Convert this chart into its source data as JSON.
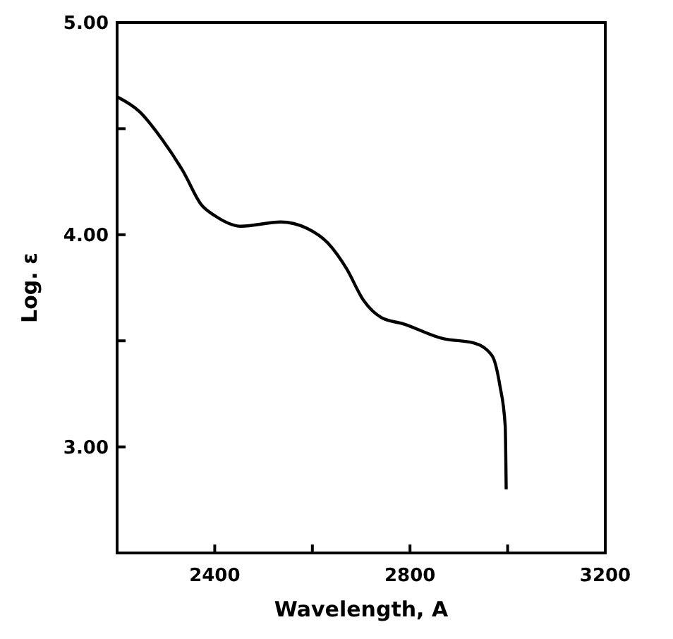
{
  "chart_data": {
    "type": "line",
    "xlabel": "Wavelength, A",
    "ylabel": "Log. ε",
    "xlim": [
      2200,
      3200
    ],
    "xticks": [
      2400,
      {
        "value": 2600,
        "label": null
      },
      2800,
      {
        "value": 3000,
        "label": null
      },
      3200
    ],
    "ylim": [
      2.5,
      5
    ],
    "yticks": [
      {
        "value": 3,
        "label": "3.00"
      },
      {
        "value": 3.5,
        "label": null
      },
      {
        "value": 4,
        "label": "4.00"
      },
      {
        "value": 4.5,
        "label": null
      },
      {
        "value": 5,
        "label": "5.00"
      }
    ],
    "grid": false,
    "marker": "none",
    "line_style": "solid",
    "x": [
      2200,
      2246,
      2292,
      2335,
      2373,
      2400,
      2454,
      2535,
      2589,
      2632,
      2670,
      2705,
      2741,
      2786,
      2868,
      2930,
      2968,
      2984,
      2995,
      2997
    ],
    "series": [
      {
        "color": "#000000",
        "values": [
          4.65,
          4.58,
          4.45,
          4.3,
          4.14,
          4.09,
          4.04,
          4.06,
          4.03,
          3.96,
          3.84,
          3.69,
          3.61,
          3.58,
          3.51,
          3.49,
          3.43,
          3.29,
          3.1,
          2.8
        ]
      }
    ]
  }
}
